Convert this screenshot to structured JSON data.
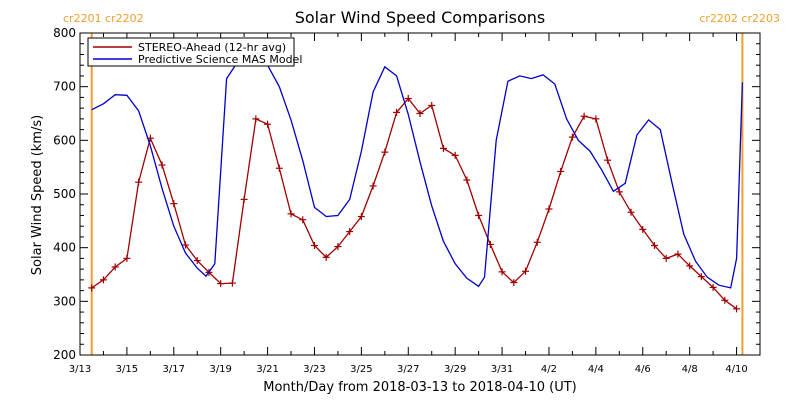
{
  "chart_data": {
    "type": "line",
    "title": "Solar Wind Speed Comparisons",
    "xlabel": "Month/Day from 2018-03-13 to 2018-04-10 (UT)",
    "ylabel": "Solar Wind Speed (km/s)",
    "xlim": [
      "2018-03-13",
      "2018-04-11"
    ],
    "ylim": [
      200,
      800
    ],
    "y_ticks": [
      200,
      300,
      400,
      500,
      600,
      700,
      800
    ],
    "x_ticks": [
      {
        "date": "2018-03-13",
        "label": "3/13"
      },
      {
        "date": "2018-03-15",
        "label": "3/15"
      },
      {
        "date": "2018-03-17",
        "label": "3/17"
      },
      {
        "date": "2018-03-19",
        "label": "3/19"
      },
      {
        "date": "2018-03-21",
        "label": "3/21"
      },
      {
        "date": "2018-03-23",
        "label": "3/23"
      },
      {
        "date": "2018-03-25",
        "label": "3/25"
      },
      {
        "date": "2018-03-27",
        "label": "3/27"
      },
      {
        "date": "2018-03-29",
        "label": "3/29"
      },
      {
        "date": "2018-03-31",
        "label": "3/31"
      },
      {
        "date": "2018-04-02",
        "label": "4/2"
      },
      {
        "date": "2018-04-04",
        "label": "4/4"
      },
      {
        "date": "2018-04-06",
        "label": "4/6"
      },
      {
        "date": "2018-04-08",
        "label": "4/8"
      },
      {
        "date": "2018-04-10",
        "label": "4/10"
      }
    ],
    "legend_position": "top-left",
    "grid": false,
    "carrington_markers": [
      {
        "date": "2018-03-13 12:00",
        "label": "cr2201 cr2202",
        "color": "#f0a030",
        "side": "left"
      },
      {
        "date": "2018-04-10 06:00",
        "label": "cr2202 cr2203",
        "color": "#f0a030",
        "side": "right"
      }
    ],
    "series": [
      {
        "name": "STEREO-Ahead (12-hr avg)",
        "color": "#a00000",
        "markers": true,
        "points": [
          [
            "2018-03-13 12:00",
            325
          ],
          [
            "2018-03-14 00:00",
            340
          ],
          [
            "2018-03-14 12:00",
            364
          ],
          [
            "2018-03-15 00:00",
            380
          ],
          [
            "2018-03-15 12:00",
            522
          ],
          [
            "2018-03-16 00:00",
            604
          ],
          [
            "2018-03-16 12:00",
            554
          ],
          [
            "2018-03-17 00:00",
            482
          ],
          [
            "2018-03-17 12:00",
            405
          ],
          [
            "2018-03-18 00:00",
            376
          ],
          [
            "2018-03-18 12:00",
            354
          ],
          [
            "2018-03-19 00:00",
            333
          ],
          [
            "2018-03-19 12:00",
            334
          ],
          [
            "2018-03-20 00:00",
            490
          ],
          [
            "2018-03-20 12:00",
            640
          ],
          [
            "2018-03-21 00:00",
            630
          ],
          [
            "2018-03-21 12:00",
            548
          ],
          [
            "2018-03-22 00:00",
            463
          ],
          [
            "2018-03-22 12:00",
            452
          ],
          [
            "2018-03-23 00:00",
            404
          ],
          [
            "2018-03-23 12:00",
            382
          ],
          [
            "2018-03-24 00:00",
            402
          ],
          [
            "2018-03-24 12:00",
            430
          ],
          [
            "2018-03-25 00:00",
            458
          ],
          [
            "2018-03-25 12:00",
            515
          ],
          [
            "2018-03-26 00:00",
            578
          ],
          [
            "2018-03-26 12:00",
            652
          ],
          [
            "2018-03-27 00:00",
            678
          ],
          [
            "2018-03-27 12:00",
            650
          ],
          [
            "2018-03-28 00:00",
            665
          ],
          [
            "2018-03-28 12:00",
            585
          ],
          [
            "2018-03-29 00:00",
            572
          ],
          [
            "2018-03-29 12:00",
            526
          ],
          [
            "2018-03-30 00:00",
            460
          ],
          [
            "2018-03-30 12:00",
            406
          ],
          [
            "2018-03-31 00:00",
            355
          ],
          [
            "2018-03-31 12:00",
            335
          ],
          [
            "2018-04-01 00:00",
            356
          ],
          [
            "2018-04-01 12:00",
            410
          ],
          [
            "2018-04-02 00:00",
            472
          ],
          [
            "2018-04-02 12:00",
            542
          ],
          [
            "2018-04-03 00:00",
            606
          ],
          [
            "2018-04-03 12:00",
            645
          ],
          [
            "2018-04-04 00:00",
            640
          ],
          [
            "2018-04-04 12:00",
            563
          ],
          [
            "2018-04-05 00:00",
            504
          ],
          [
            "2018-04-05 12:00",
            466
          ],
          [
            "2018-04-06 00:00",
            434
          ],
          [
            "2018-04-06 12:00",
            404
          ],
          [
            "2018-04-07 00:00",
            380
          ],
          [
            "2018-04-07 12:00",
            388
          ],
          [
            "2018-04-08 00:00",
            366
          ],
          [
            "2018-04-08 12:00",
            346
          ],
          [
            "2018-04-09 00:00",
            326
          ],
          [
            "2018-04-09 12:00",
            302
          ],
          [
            "2018-04-10 00:00",
            286
          ]
        ]
      },
      {
        "name": "Predictive Science MAS Model",
        "color": "#0000cc",
        "markers": false,
        "points": [
          [
            "2018-03-13 12:00",
            657
          ],
          [
            "2018-03-14 00:00",
            668
          ],
          [
            "2018-03-14 12:00",
            685
          ],
          [
            "2018-03-15 00:00",
            684
          ],
          [
            "2018-03-15 12:00",
            655
          ],
          [
            "2018-03-16 00:00",
            590
          ],
          [
            "2018-03-16 12:00",
            510
          ],
          [
            "2018-03-17 00:00",
            440
          ],
          [
            "2018-03-17 12:00",
            390
          ],
          [
            "2018-03-18 00:00",
            362
          ],
          [
            "2018-03-18 09:00",
            347
          ],
          [
            "2018-03-18 18:00",
            370
          ],
          [
            "2018-03-19 06:00",
            715
          ],
          [
            "2018-03-19 18:00",
            748
          ],
          [
            "2018-03-20 12:00",
            752
          ],
          [
            "2018-03-21 00:00",
            740
          ],
          [
            "2018-03-21 12:00",
            700
          ],
          [
            "2018-03-22 00:00",
            638
          ],
          [
            "2018-03-22 12:00",
            562
          ],
          [
            "2018-03-23 00:00",
            475
          ],
          [
            "2018-03-23 12:00",
            458
          ],
          [
            "2018-03-24 00:00",
            460
          ],
          [
            "2018-03-24 12:00",
            490
          ],
          [
            "2018-03-25 00:00",
            580
          ],
          [
            "2018-03-25 12:00",
            690
          ],
          [
            "2018-03-26 00:00",
            737
          ],
          [
            "2018-03-26 12:00",
            720
          ],
          [
            "2018-03-27 00:00",
            648
          ],
          [
            "2018-03-27 12:00",
            560
          ],
          [
            "2018-03-28 00:00",
            478
          ],
          [
            "2018-03-28 12:00",
            412
          ],
          [
            "2018-03-29 00:00",
            370
          ],
          [
            "2018-03-29 12:00",
            343
          ],
          [
            "2018-03-30 00:00",
            328
          ],
          [
            "2018-03-30 06:00",
            345
          ],
          [
            "2018-03-30 18:00",
            600
          ],
          [
            "2018-03-31 06:00",
            710
          ],
          [
            "2018-03-31 18:00",
            720
          ],
          [
            "2018-04-01 06:00",
            715
          ],
          [
            "2018-04-01 18:00",
            722
          ],
          [
            "2018-04-02 06:00",
            705
          ],
          [
            "2018-04-02 18:00",
            640
          ],
          [
            "2018-04-03 06:00",
            600
          ],
          [
            "2018-04-03 18:00",
            580
          ],
          [
            "2018-04-04 06:00",
            545
          ],
          [
            "2018-04-04 18:00",
            505
          ],
          [
            "2018-04-05 06:00",
            520
          ],
          [
            "2018-04-05 18:00",
            610
          ],
          [
            "2018-04-06 06:00",
            638
          ],
          [
            "2018-04-06 18:00",
            620
          ],
          [
            "2018-04-07 06:00",
            520
          ],
          [
            "2018-04-07 18:00",
            425
          ],
          [
            "2018-04-08 06:00",
            375
          ],
          [
            "2018-04-08 18:00",
            345
          ],
          [
            "2018-04-09 06:00",
            330
          ],
          [
            "2018-04-09 18:00",
            325
          ],
          [
            "2018-04-10 00:00",
            380
          ],
          [
            "2018-04-10 06:00",
            708
          ]
        ]
      }
    ]
  }
}
